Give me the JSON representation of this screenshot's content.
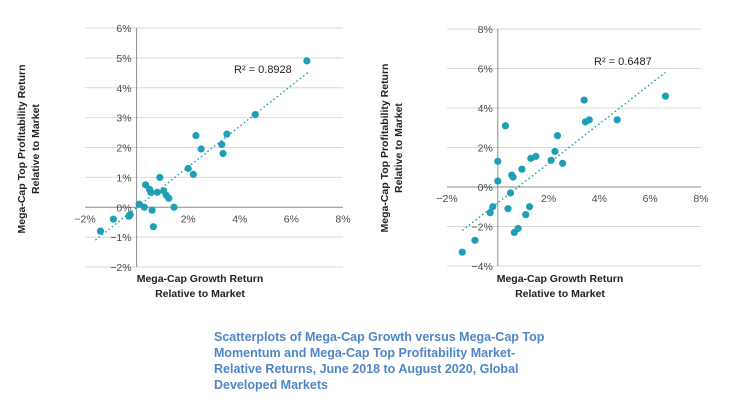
{
  "chart_data": [
    {
      "type": "scatter",
      "title": "",
      "xlabel": "Mega-Cap Growth Return Relative to Market",
      "xlabel_lines": [
        "Mega-Cap Growth Return",
        "Relative to Market"
      ],
      "ylabel": "Mega-Cap Top Profitability Return Relative to Market",
      "ylabel_lines": [
        "Mega-Cap Top Profitability Return",
        "Relative to Market"
      ],
      "xlim": [
        -2,
        8
      ],
      "ylim": [
        -2,
        6
      ],
      "xticks": [
        -2,
        0,
        2,
        4,
        6,
        8
      ],
      "yticks": [
        -2,
        -1,
        0,
        1,
        2,
        3,
        4,
        5,
        6
      ],
      "xtick_labels": [
        "−2%",
        "0%",
        "2%",
        "4%",
        "6%",
        "8%"
      ],
      "ytick_labels": [
        "−2%",
        "−1%",
        "0%",
        "1%",
        "2%",
        "3%",
        "4%",
        "5%",
        "6%"
      ],
      "grid": "horizontal",
      "r2_label": "R² = 0.8928",
      "trendline": {
        "x": [
          -1.6,
          6.7
        ],
        "y": [
          -1.1,
          4.55
        ]
      },
      "points": [
        {
          "x": -1.4,
          "y": -0.8
        },
        {
          "x": -0.9,
          "y": -0.4
        },
        {
          "x": -0.3,
          "y": -0.3
        },
        {
          "x": -0.25,
          "y": -0.25
        },
        {
          "x": 0.1,
          "y": 0.1
        },
        {
          "x": 0.3,
          "y": 0.0
        },
        {
          "x": 0.35,
          "y": 0.75
        },
        {
          "x": 0.5,
          "y": 0.6
        },
        {
          "x": 0.55,
          "y": 0.5
        },
        {
          "x": 0.6,
          "y": -0.1
        },
        {
          "x": 0.65,
          "y": -0.65
        },
        {
          "x": 0.8,
          "y": 0.5
        },
        {
          "x": 0.9,
          "y": 1.0
        },
        {
          "x": 1.05,
          "y": 0.55
        },
        {
          "x": 1.15,
          "y": 0.4
        },
        {
          "x": 1.25,
          "y": 0.3
        },
        {
          "x": 1.45,
          "y": 0.0
        },
        {
          "x": 2.0,
          "y": 1.3
        },
        {
          "x": 2.2,
          "y": 1.1
        },
        {
          "x": 2.3,
          "y": 2.4
        },
        {
          "x": 2.5,
          "y": 1.95
        },
        {
          "x": 3.3,
          "y": 2.1
        },
        {
          "x": 3.35,
          "y": 1.8
        },
        {
          "x": 3.5,
          "y": 2.45
        },
        {
          "x": 4.6,
          "y": 3.1
        },
        {
          "x": 6.6,
          "y": 4.9
        }
      ]
    },
    {
      "type": "scatter",
      "title": "",
      "xlabel": "Mega-Cap Growth Return Relative to Market",
      "xlabel_lines": [
        "Mega-Cap Growth Return",
        "Relative to Market"
      ],
      "ylabel": "Mega-Cap Top Profitability Return Relative to Market",
      "ylabel_lines": [
        "Mega-Cap Top Profitability Return",
        "Relative to Market"
      ],
      "xlim": [
        -2,
        8
      ],
      "ylim": [
        -4,
        8
      ],
      "xticks": [
        -2,
        0,
        2,
        4,
        6,
        8
      ],
      "yticks": [
        -4,
        -2,
        0,
        2,
        4,
        6,
        8
      ],
      "xtick_labels": [
        "−2%",
        "0%",
        "2%",
        "4%",
        "6%",
        "8%"
      ],
      "ytick_labels": [
        "−4%",
        "−2%",
        "0%",
        "2%",
        "4%",
        "6%",
        "8%"
      ],
      "grid": "horizontal",
      "r2_label": "R² = 0.6487",
      "trendline": {
        "x": [
          -1.4,
          6.6
        ],
        "y": [
          -2.2,
          5.8
        ]
      },
      "points": [
        {
          "x": -1.4,
          "y": -3.3
        },
        {
          "x": -0.9,
          "y": -2.7
        },
        {
          "x": -0.3,
          "y": -1.3
        },
        {
          "x": -0.2,
          "y": -1.0
        },
        {
          "x": 0.0,
          "y": 1.3
        },
        {
          "x": 0.0,
          "y": 0.3
        },
        {
          "x": 0.3,
          "y": 3.1
        },
        {
          "x": 0.4,
          "y": -1.1
        },
        {
          "x": 0.5,
          "y": -0.3
        },
        {
          "x": 0.55,
          "y": 0.6
        },
        {
          "x": 0.6,
          "y": 0.5
        },
        {
          "x": 0.65,
          "y": -2.3
        },
        {
          "x": 0.8,
          "y": -2.1
        },
        {
          "x": 0.95,
          "y": 0.9
        },
        {
          "x": 1.1,
          "y": -1.4
        },
        {
          "x": 1.25,
          "y": -1.0
        },
        {
          "x": 1.3,
          "y": 1.45
        },
        {
          "x": 1.5,
          "y": 1.55
        },
        {
          "x": 2.1,
          "y": 1.35
        },
        {
          "x": 2.25,
          "y": 1.8
        },
        {
          "x": 2.35,
          "y": 2.6
        },
        {
          "x": 2.55,
          "y": 1.2
        },
        {
          "x": 3.4,
          "y": 4.4
        },
        {
          "x": 3.45,
          "y": 3.3
        },
        {
          "x": 3.6,
          "y": 3.4
        },
        {
          "x": 4.7,
          "y": 3.4
        },
        {
          "x": 6.6,
          "y": 4.6
        }
      ]
    }
  ],
  "caption": "Scatterplots of Mega-Cap Growth versus Mega-Cap Top Momentum and Mega-Cap Top Profitability Market-Relative Returns, June 2018 to August 2020, Global Developed Markets",
  "colors": {
    "marker": "#1f9fb5",
    "trendline": "#1f9fb5",
    "caption": "#4f86c6",
    "grid": "#d9d9d9"
  }
}
